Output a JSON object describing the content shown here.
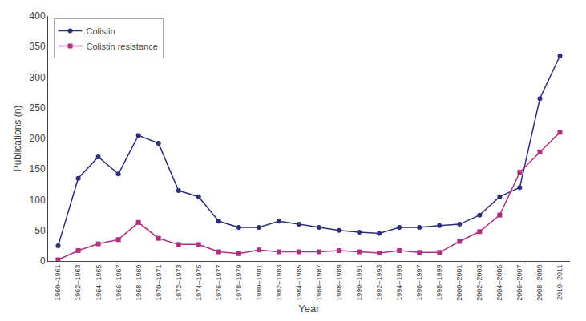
{
  "chart_data": {
    "type": "line",
    "categories": [
      "1960–1961",
      "1962–1963",
      "1964–1965",
      "1966–1967",
      "1968–1969",
      "1970–1971",
      "1972–1973",
      "1974–1975",
      "1976–1977",
      "1978–1979",
      "1980–1981",
      "1982–1983",
      "1984–1985",
      "1986–1987",
      "1988–1989",
      "1990–1991",
      "1992–1993",
      "1994–1995",
      "1996–1997",
      "1998–1999",
      "2000–2001",
      "2002–2003",
      "2004–2005",
      "2006–2007",
      "2008–2009",
      "2010–2011"
    ],
    "series": [
      {
        "name": "Colistin",
        "color": "#2e2e7a",
        "marker": "circle",
        "values": [
          25,
          135,
          170,
          142,
          205,
          192,
          115,
          105,
          65,
          55,
          55,
          65,
          60,
          55,
          50,
          47,
          45,
          55,
          55,
          58,
          60,
          75,
          105,
          120,
          265,
          335
        ]
      },
      {
        "name": "Colistin resistance",
        "color": "#b03080",
        "marker": "square",
        "values": [
          2,
          17,
          28,
          35,
          63,
          37,
          27,
          27,
          15,
          12,
          18,
          15,
          15,
          15,
          17,
          15,
          13,
          17,
          14,
          14,
          32,
          48,
          75,
          145,
          178,
          210
        ]
      }
    ],
    "xlabel": "Year",
    "ylabel": "Publications (n)",
    "ylim": [
      0,
      400
    ],
    "yticks": [
      0,
      50,
      100,
      150,
      200,
      250,
      300,
      350,
      400
    ],
    "grid": false,
    "legend": "upper left"
  }
}
